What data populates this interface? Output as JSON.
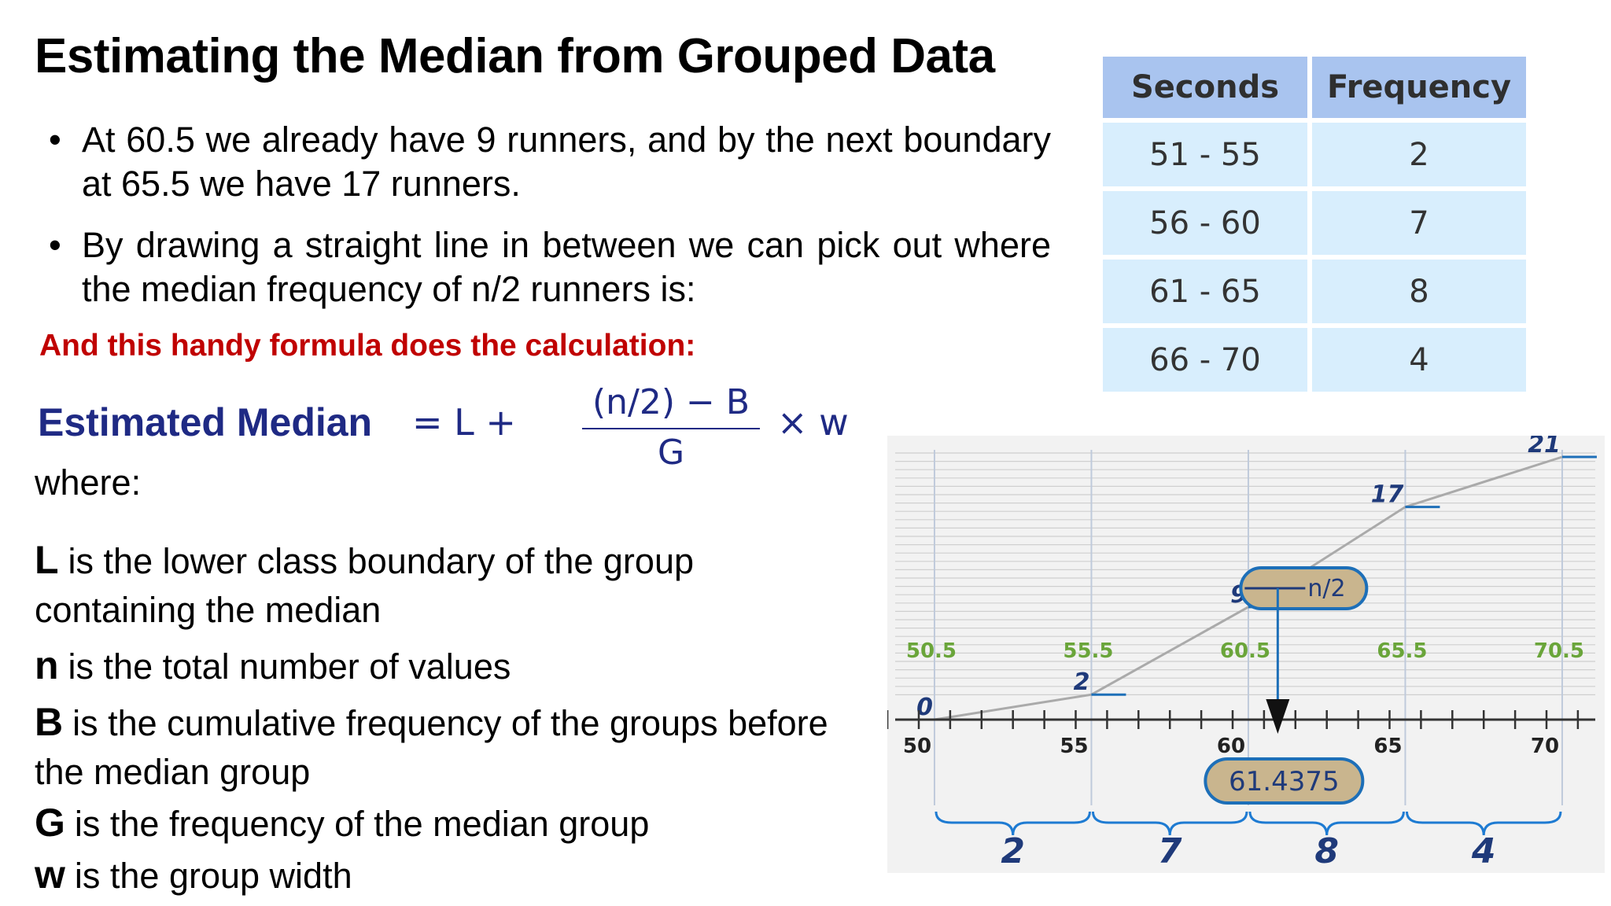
{
  "slide": {
    "title": "Estimating the Median from Grouped Data",
    "bullets": [
      "At 60.5 we already have 9 runners, and by the next boundary at 65.5 we have 17 runners.",
      "By drawing a straight line in between we can pick out where the median frequency of n/2 runners is:"
    ],
    "highlight": "And this handy formula does the calculation:",
    "formula": {
      "label": "Estimated Median",
      "lhs": "= L +",
      "numerator": "(n/2) − B",
      "denominator": "G",
      "suffix": "× w"
    },
    "where": "where:",
    "definitions": [
      {
        "symbol": "L",
        "line1": "is the lower class boundary of the group",
        "line2": "containing the median"
      },
      {
        "symbol": "n",
        "line1": "is the total number of values"
      },
      {
        "symbol": "B",
        "line1": "is the cumulative frequency of the groups before",
        "line2": "the median group"
      },
      {
        "symbol": "G",
        "line1": "is the frequency of the median group"
      },
      {
        "symbol": "w",
        "line1": "is the group width"
      }
    ]
  },
  "table": {
    "headers": [
      "Seconds",
      "Frequency"
    ],
    "rows": [
      [
        "51 - 55",
        "2"
      ],
      [
        "56 - 60",
        "7"
      ],
      [
        "61 - 65",
        "8"
      ],
      [
        "66 - 70",
        "4"
      ]
    ]
  },
  "graph": {
    "axis_ticks": [
      "50",
      "55",
      "60",
      "65",
      "70"
    ],
    "boundary_labels": [
      "50.5",
      "55.5",
      "60.5",
      "65.5",
      "70.5"
    ],
    "cumulative_labels": [
      "0",
      "2",
      "9",
      "17",
      "21"
    ],
    "median_label": "n/2",
    "result_label": "61.4375",
    "group_counts": [
      "2",
      "7",
      "8",
      "4"
    ],
    "colors": {
      "boundary": "#6aa53a",
      "arrow": "#1d6fb8",
      "pill": "#c9b58e",
      "brace": "#1e7bd2",
      "line": "#aaaaaa"
    }
  }
}
